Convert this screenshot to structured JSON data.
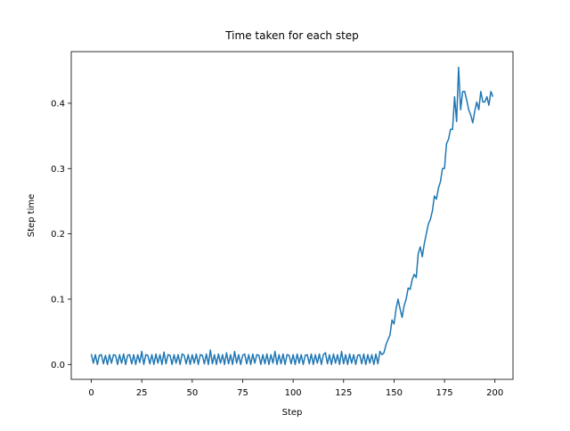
{
  "chart_data": {
    "type": "line",
    "title": "Time taken for each step",
    "x_label": "Step",
    "y_label": "Step time",
    "x": [
      0,
      1,
      2,
      3,
      4,
      5,
      6,
      7,
      8,
      9,
      10,
      11,
      12,
      13,
      14,
      15,
      16,
      17,
      18,
      19,
      20,
      21,
      22,
      23,
      24,
      25,
      26,
      27,
      28,
      29,
      30,
      31,
      32,
      33,
      34,
      35,
      36,
      37,
      38,
      39,
      40,
      41,
      42,
      43,
      44,
      45,
      46,
      47,
      48,
      49,
      50,
      51,
      52,
      53,
      54,
      55,
      56,
      57,
      58,
      59,
      60,
      61,
      62,
      63,
      64,
      65,
      66,
      67,
      68,
      69,
      70,
      71,
      72,
      73,
      74,
      75,
      76,
      77,
      78,
      79,
      80,
      81,
      82,
      83,
      84,
      85,
      86,
      87,
      88,
      89,
      90,
      91,
      92,
      93,
      94,
      95,
      96,
      97,
      98,
      99,
      100,
      101,
      102,
      103,
      104,
      105,
      106,
      107,
      108,
      109,
      110,
      111,
      112,
      113,
      114,
      115,
      116,
      117,
      118,
      119,
      120,
      121,
      122,
      123,
      124,
      125,
      126,
      127,
      128,
      129,
      130,
      131,
      132,
      133,
      134,
      135,
      136,
      137,
      138,
      139,
      140,
      141,
      142,
      143,
      144,
      145,
      146,
      147,
      148,
      149,
      150,
      151,
      152,
      153,
      154,
      155,
      156,
      157,
      158,
      159,
      160,
      161,
      162,
      163,
      164,
      165,
      166,
      167,
      168,
      169,
      170,
      171,
      172,
      173,
      174,
      175,
      176,
      177,
      178,
      179,
      180,
      181,
      182,
      183,
      184,
      185,
      186,
      187,
      188,
      189,
      190,
      191,
      192,
      193,
      194,
      195,
      196,
      197,
      198,
      199
    ],
    "series": [
      {
        "color": "#1f77b4",
        "values": [
          0.016,
          0.002,
          0.015,
          0.0,
          0.014,
          0.015,
          0.001,
          0.014,
          0.0,
          0.015,
          0.002,
          0.015,
          0.014,
          0.0,
          0.015,
          0.002,
          0.016,
          0.0,
          0.014,
          0.015,
          0.001,
          0.015,
          0.0,
          0.015,
          0.003,
          0.02,
          0.0,
          0.015,
          0.014,
          0.001,
          0.015,
          0.0,
          0.016,
          0.002,
          0.015,
          0.0,
          0.019,
          0.001,
          0.015,
          0.014,
          0.0,
          0.015,
          0.002,
          0.015,
          0.0,
          0.016,
          0.014,
          0.001,
          0.015,
          0.0,
          0.015,
          0.002,
          0.016,
          0.0,
          0.015,
          0.014,
          0.001,
          0.016,
          0.0,
          0.022,
          0.001,
          0.015,
          0.0,
          0.016,
          0.002,
          0.015,
          0.0,
          0.018,
          0.001,
          0.015,
          0.0,
          0.02,
          0.002,
          0.015,
          0.0,
          0.014,
          0.016,
          0.001,
          0.015,
          0.0,
          0.016,
          0.002,
          0.015,
          0.014,
          0.0,
          0.015,
          0.001,
          0.016,
          0.0,
          0.015,
          0.002,
          0.02,
          0.0,
          0.015,
          0.001,
          0.016,
          0.0,
          0.015,
          0.014,
          0.001,
          0.015,
          0.0,
          0.016,
          0.002,
          0.015,
          0.0,
          0.014,
          0.015,
          0.001,
          0.016,
          0.0,
          0.015,
          0.002,
          0.016,
          0.0,
          0.015,
          0.018,
          0.001,
          0.015,
          0.0,
          0.016,
          0.002,
          0.015,
          0.0,
          0.02,
          0.001,
          0.015,
          0.0,
          0.016,
          0.002,
          0.015,
          0.0,
          0.014,
          0.015,
          0.001,
          0.016,
          0.0,
          0.015,
          0.002,
          0.015,
          0.0,
          0.016,
          0.001,
          0.02,
          0.015,
          0.018,
          0.03,
          0.038,
          0.045,
          0.068,
          0.062,
          0.085,
          0.1,
          0.085,
          0.072,
          0.09,
          0.1,
          0.117,
          0.115,
          0.13,
          0.138,
          0.133,
          0.17,
          0.18,
          0.165,
          0.185,
          0.2,
          0.215,
          0.222,
          0.235,
          0.258,
          0.253,
          0.27,
          0.28,
          0.3,
          0.3,
          0.338,
          0.345,
          0.36,
          0.36,
          0.41,
          0.372,
          0.455,
          0.39,
          0.418,
          0.418,
          0.405,
          0.39,
          0.382,
          0.37,
          0.388,
          0.402,
          0.39,
          0.418,
          0.402,
          0.402,
          0.41,
          0.397,
          0.418,
          0.41
        ]
      }
    ],
    "xlim": [
      -9.95,
      208.95
    ],
    "xticks": [
      0,
      25,
      50,
      75,
      100,
      125,
      150,
      175,
      200
    ],
    "ylim": [
      -0.0228,
      0.479
    ],
    "yticks": [
      {
        "value": 0,
        "label": "0.0"
      },
      0.1,
      0.2,
      0.3,
      0.4
    ]
  }
}
